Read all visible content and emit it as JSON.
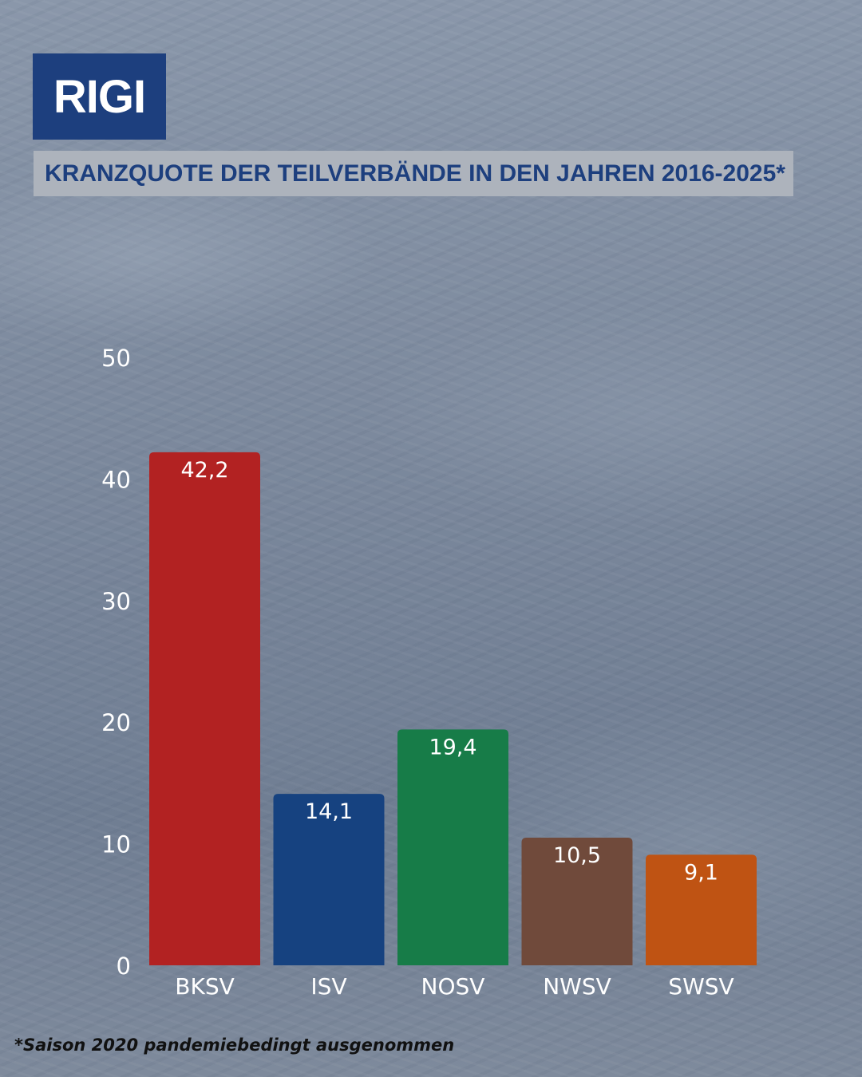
{
  "header": {
    "brand": "RIGI",
    "subtitle": "KRANZQUOTE DER TEILVERBÄNDE IN DEN JAHREN 2016-2025*"
  },
  "footnote": "*Saison 2020 pandemiebedingt ausgenommen",
  "chart_data": {
    "type": "bar",
    "title": "KRANZQUOTE DER TEILVERBÄNDE IN DEN JAHREN 2016-2025*",
    "xlabel": "",
    "ylabel": "",
    "categories": [
      "BKSV",
      "ISV",
      "NOSV",
      "NWSV",
      "SWSV"
    ],
    "values": [
      42.2,
      14.1,
      19.4,
      10.5,
      9.1
    ],
    "value_labels": [
      "42,2",
      "14,1",
      "19,4",
      "10,5",
      "9,1"
    ],
    "colors": [
      "#b22222",
      "#164280",
      "#177c48",
      "#704a3b",
      "#bf5313"
    ],
    "ylim": [
      0,
      50
    ],
    "yticks": [
      0,
      10,
      20,
      30,
      40,
      50
    ],
    "grid": false,
    "legend": "none"
  }
}
